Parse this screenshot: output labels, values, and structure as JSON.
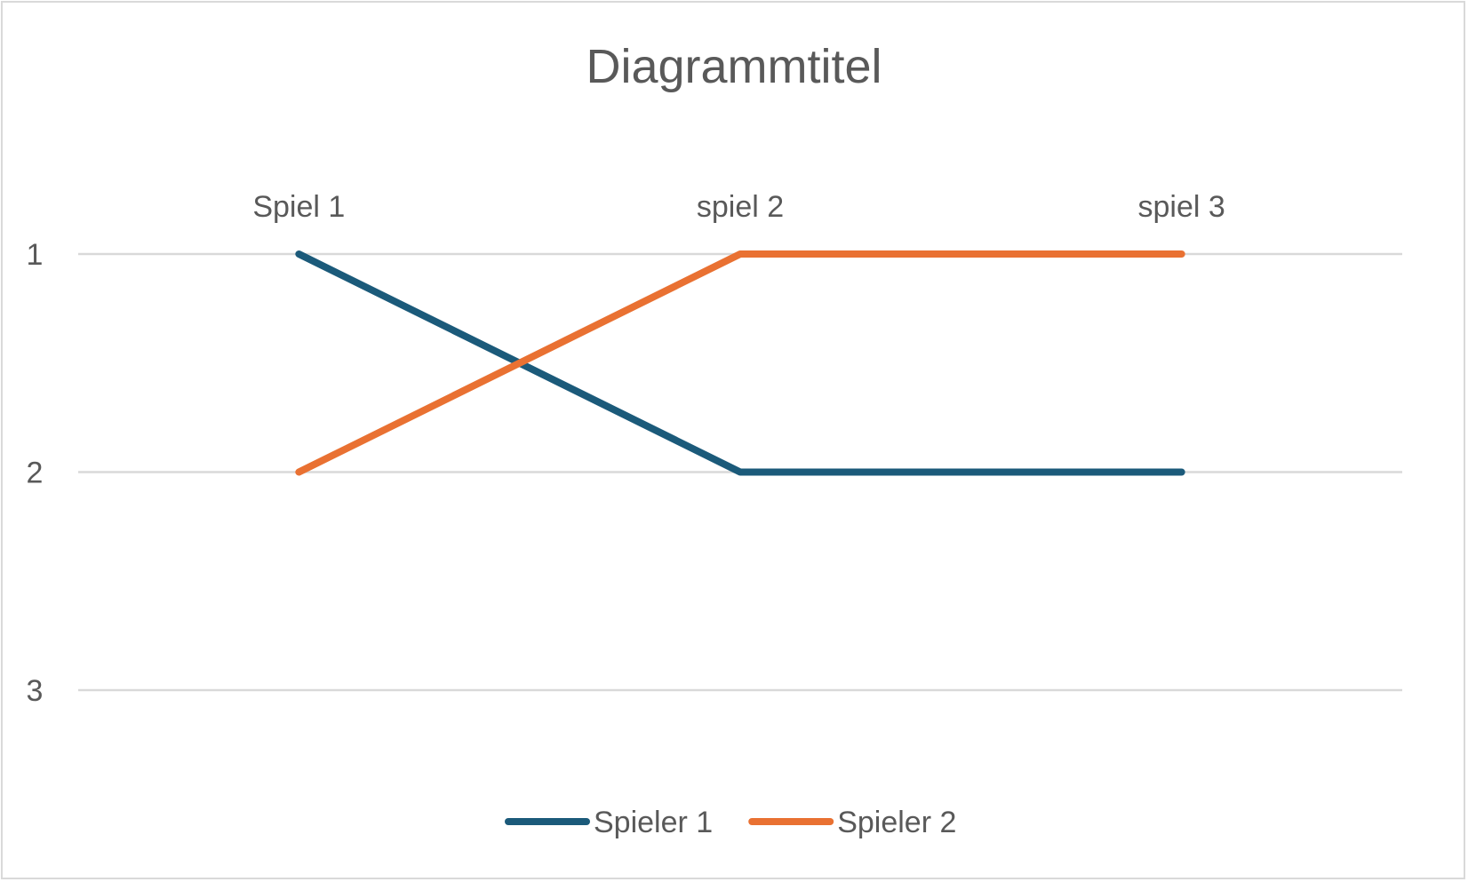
{
  "chart_data": {
    "type": "line",
    "title": "Diagrammtitel",
    "categories": [
      "Spiel 1",
      "spiel 2",
      "spiel 3"
    ],
    "series": [
      {
        "name": "Spieler 1",
        "values": [
          1,
          2,
          2
        ],
        "color": "#1b5a7a"
      },
      {
        "name": "Spieler 2",
        "values": [
          2,
          1,
          1
        ],
        "color": "#e97132"
      }
    ],
    "y_ticks": [
      "1",
      "2",
      "3"
    ],
    "ylim": [
      1,
      3
    ],
    "y_reversed": true,
    "x_axis_position": "top",
    "grid": true,
    "legend_position": "bottom"
  }
}
